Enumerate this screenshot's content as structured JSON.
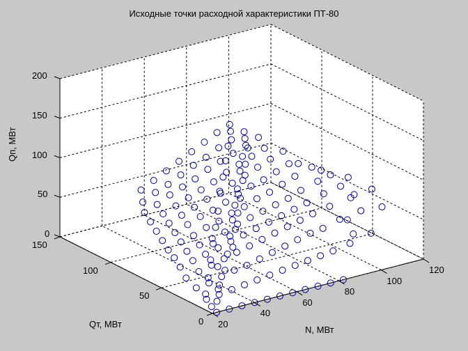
{
  "chart_data": {
    "type": "scatter3d",
    "title": "Исходные точки расходной характеристики ПТ-80",
    "xlabel": "N, МВт",
    "ylabel": "Qт, МВт",
    "zlabel": "Qп, МВт",
    "xlim": [
      20,
      120
    ],
    "ylim": [
      0,
      150
    ],
    "zlim": [
      0,
      200
    ],
    "xticks": [
      20,
      40,
      60,
      80,
      100,
      120
    ],
    "yticks": [
      0,
      50,
      100,
      150
    ],
    "zticks": [
      0,
      50,
      100,
      150,
      200
    ],
    "grid": true,
    "marker": "o",
    "marker_color": "#00008b",
    "points_note": "approximate point cloud read from projection (N, Qт, Qп)",
    "points": [
      [
        22,
        0,
        0
      ],
      [
        28,
        0,
        0
      ],
      [
        34,
        0,
        0
      ],
      [
        40,
        0,
        0
      ],
      [
        46,
        0,
        0
      ],
      [
        52,
        0,
        0
      ],
      [
        58,
        0,
        0
      ],
      [
        64,
        0,
        0
      ],
      [
        70,
        0,
        0
      ],
      [
        76,
        0,
        0
      ],
      [
        82,
        0,
        0
      ],
      [
        22,
        10,
        10
      ],
      [
        28,
        10,
        12
      ],
      [
        34,
        10,
        14
      ],
      [
        40,
        10,
        16
      ],
      [
        46,
        10,
        18
      ],
      [
        52,
        10,
        20
      ],
      [
        58,
        10,
        22
      ],
      [
        64,
        10,
        24
      ],
      [
        70,
        10,
        26
      ],
      [
        76,
        10,
        28
      ],
      [
        82,
        10,
        30
      ],
      [
        90,
        10,
        34
      ],
      [
        100,
        10,
        40
      ],
      [
        22,
        20,
        18
      ],
      [
        28,
        20,
        20
      ],
      [
        34,
        20,
        24
      ],
      [
        40,
        20,
        28
      ],
      [
        46,
        20,
        30
      ],
      [
        52,
        20,
        34
      ],
      [
        58,
        20,
        38
      ],
      [
        64,
        20,
        42
      ],
      [
        70,
        20,
        46
      ],
      [
        76,
        20,
        50
      ],
      [
        82,
        20,
        52
      ],
      [
        90,
        20,
        58
      ],
      [
        100,
        20,
        62
      ],
      [
        22,
        30,
        24
      ],
      [
        28,
        30,
        28
      ],
      [
        34,
        30,
        32
      ],
      [
        40,
        30,
        36
      ],
      [
        46,
        30,
        40
      ],
      [
        52,
        30,
        44
      ],
      [
        58,
        30,
        48
      ],
      [
        64,
        30,
        52
      ],
      [
        70,
        30,
        56
      ],
      [
        76,
        30,
        60
      ],
      [
        82,
        30,
        64
      ],
      [
        90,
        30,
        68
      ],
      [
        100,
        30,
        72
      ],
      [
        110,
        30,
        76
      ],
      [
        24,
        40,
        30
      ],
      [
        30,
        40,
        34
      ],
      [
        36,
        40,
        38
      ],
      [
        42,
        40,
        42
      ],
      [
        48,
        40,
        46
      ],
      [
        54,
        40,
        50
      ],
      [
        60,
        40,
        54
      ],
      [
        66,
        40,
        58
      ],
      [
        72,
        40,
        62
      ],
      [
        78,
        40,
        66
      ],
      [
        84,
        40,
        70
      ],
      [
        92,
        40,
        76
      ],
      [
        100,
        40,
        80
      ],
      [
        26,
        50,
        34
      ],
      [
        32,
        50,
        38
      ],
      [
        38,
        50,
        42
      ],
      [
        44,
        50,
        46
      ],
      [
        50,
        50,
        50
      ],
      [
        56,
        50,
        56
      ],
      [
        62,
        50,
        60
      ],
      [
        68,
        50,
        64
      ],
      [
        74,
        50,
        68
      ],
      [
        80,
        50,
        72
      ],
      [
        86,
        50,
        78
      ],
      [
        94,
        50,
        84
      ],
      [
        100,
        50,
        88
      ],
      [
        28,
        60,
        36
      ],
      [
        34,
        60,
        42
      ],
      [
        40,
        60,
        46
      ],
      [
        46,
        60,
        52
      ],
      [
        52,
        60,
        56
      ],
      [
        58,
        60,
        62
      ],
      [
        64,
        60,
        66
      ],
      [
        70,
        60,
        72
      ],
      [
        76,
        60,
        76
      ],
      [
        82,
        60,
        82
      ],
      [
        88,
        60,
        88
      ],
      [
        96,
        60,
        94
      ],
      [
        30,
        70,
        40
      ],
      [
        36,
        70,
        46
      ],
      [
        42,
        70,
        52
      ],
      [
        48,
        70,
        58
      ],
      [
        54,
        70,
        62
      ],
      [
        60,
        70,
        68
      ],
      [
        66,
        70,
        74
      ],
      [
        72,
        70,
        80
      ],
      [
        78,
        70,
        84
      ],
      [
        84,
        70,
        90
      ],
      [
        90,
        70,
        96
      ],
      [
        32,
        80,
        44
      ],
      [
        38,
        80,
        50
      ],
      [
        44,
        80,
        56
      ],
      [
        50,
        80,
        62
      ],
      [
        56,
        80,
        68
      ],
      [
        62,
        80,
        74
      ],
      [
        68,
        80,
        80
      ],
      [
        74,
        80,
        86
      ],
      [
        80,
        80,
        92
      ],
      [
        86,
        80,
        98
      ],
      [
        92,
        80,
        104
      ],
      [
        34,
        90,
        48
      ],
      [
        40,
        90,
        54
      ],
      [
        46,
        90,
        60
      ],
      [
        52,
        90,
        66
      ],
      [
        58,
        90,
        72
      ],
      [
        64,
        90,
        78
      ],
      [
        70,
        90,
        86
      ],
      [
        76,
        90,
        92
      ],
      [
        82,
        90,
        98
      ],
      [
        88,
        90,
        104
      ],
      [
        36,
        100,
        52
      ],
      [
        42,
        100,
        58
      ],
      [
        48,
        100,
        66
      ],
      [
        54,
        100,
        72
      ],
      [
        60,
        100,
        78
      ],
      [
        66,
        100,
        86
      ],
      [
        72,
        100,
        92
      ],
      [
        78,
        100,
        98
      ],
      [
        84,
        100,
        104
      ],
      [
        90,
        100,
        110
      ],
      [
        40,
        110,
        56
      ],
      [
        46,
        110,
        64
      ],
      [
        52,
        110,
        70
      ],
      [
        58,
        110,
        78
      ],
      [
        64,
        110,
        86
      ],
      [
        70,
        110,
        92
      ],
      [
        76,
        110,
        100
      ],
      [
        82,
        110,
        106
      ],
      [
        88,
        110,
        112
      ],
      [
        44,
        120,
        62
      ],
      [
        50,
        120,
        70
      ],
      [
        56,
        120,
        78
      ],
      [
        62,
        120,
        86
      ],
      [
        68,
        120,
        94
      ],
      [
        74,
        120,
        102
      ],
      [
        80,
        120,
        110
      ],
      [
        86,
        120,
        116
      ],
      [
        22,
        5,
        4
      ],
      [
        30,
        15,
        14
      ],
      [
        38,
        25,
        26
      ],
      [
        44,
        35,
        36
      ],
      [
        50,
        45,
        48
      ],
      [
        56,
        55,
        58
      ],
      [
        62,
        65,
        66
      ],
      [
        68,
        75,
        76
      ],
      [
        74,
        85,
        88
      ],
      [
        80,
        95,
        96
      ],
      [
        86,
        105,
        108
      ],
      [
        26,
        8,
        6
      ],
      [
        32,
        18,
        16
      ],
      [
        36,
        28,
        30
      ],
      [
        48,
        38,
        40
      ],
      [
        54,
        48,
        52
      ],
      [
        60,
        58,
        62
      ],
      [
        66,
        68,
        70
      ],
      [
        72,
        78,
        82
      ],
      [
        78,
        88,
        92
      ],
      [
        84,
        98,
        102
      ],
      [
        24,
        15,
        12
      ],
      [
        30,
        25,
        22
      ],
      [
        36,
        35,
        34
      ],
      [
        42,
        45,
        44
      ],
      [
        48,
        55,
        54
      ],
      [
        54,
        65,
        64
      ],
      [
        60,
        75,
        76
      ],
      [
        66,
        85,
        86
      ],
      [
        72,
        95,
        96
      ],
      [
        78,
        105,
        104
      ],
      [
        84,
        115,
        112
      ],
      [
        96,
        25,
        50
      ],
      [
        104,
        35,
        70
      ],
      [
        110,
        20,
        60
      ],
      [
        94,
        15,
        40
      ],
      [
        106,
        45,
        84
      ],
      [
        98,
        55,
        92
      ],
      [
        92,
        65,
        98
      ]
    ]
  }
}
